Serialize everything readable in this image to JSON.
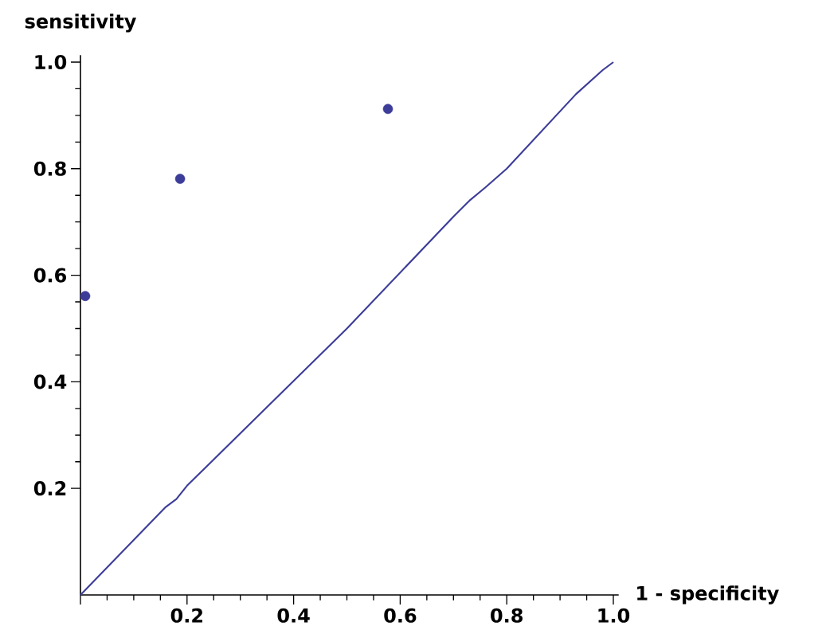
{
  "chart_data": {
    "type": "scatter",
    "xlabel": "1 -  specificity",
    "ylabel": "sensitivity",
    "xlim": [
      0,
      1.01
    ],
    "ylim": [
      0,
      1.013
    ],
    "xticks": [
      {
        "value": 0,
        "label": null
      },
      0.2,
      0.4,
      0.6,
      0.8,
      {
        "value": 1,
        "label": "1.0"
      }
    ],
    "yticks": [
      0.2,
      0.4,
      0.6,
      0.8,
      {
        "value": 1,
        "label": "1.0"
      }
    ],
    "grid": false,
    "series": [
      {
        "marker": "circle",
        "color": "#3d3d99",
        "x": [
          0.009,
          0.187,
          0.577
        ],
        "values": [
          0.561,
          0.781,
          0.912
        ]
      },
      {
        "type": "line",
        "color": "#3d3d99",
        "marker": "none",
        "line_style": "solid",
        "x": [
          0,
          0.16,
          0.18,
          0.2,
          0.5,
          0.7,
          0.73,
          0.76,
          0.8,
          0.93,
          0.98,
          1.0
        ],
        "values": [
          0,
          0.165,
          0.18,
          0.205,
          0.5,
          0.71,
          0.74,
          0.765,
          0.8,
          0.94,
          0.985,
          1.0
        ]
      }
    ]
  }
}
